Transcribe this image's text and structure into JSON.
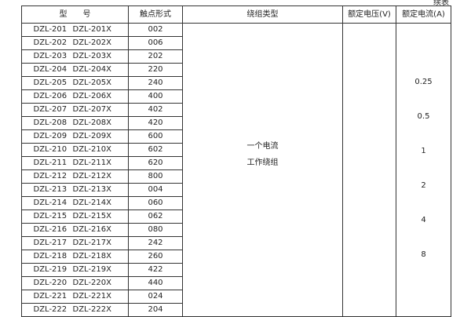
{
  "continued_label": "续表",
  "headers": {
    "model": "型　　号",
    "contact": "触点形式",
    "winding": "绕组类型",
    "voltage": "额定电压(V)",
    "current": "额定电流(A)"
  },
  "rows": [
    {
      "m1": "DZL-201",
      "m2": "DZL-201X",
      "c": "002"
    },
    {
      "m1": "DZL-202",
      "m2": "DZL-202X",
      "c": "006"
    },
    {
      "m1": "DZL-203",
      "m2": "DZL-203X",
      "c": "202"
    },
    {
      "m1": "DZL-204",
      "m2": "DZL-204X",
      "c": "220"
    },
    {
      "m1": "DZL-205",
      "m2": "DZL-205X",
      "c": "240"
    },
    {
      "m1": "DZL-206",
      "m2": "DZL-206X",
      "c": "400"
    },
    {
      "m1": "DZL-207",
      "m2": "DZL-207X",
      "c": "402"
    },
    {
      "m1": "DZL-208",
      "m2": "DZL-208X",
      "c": "420"
    },
    {
      "m1": "DZL-209",
      "m2": "DZL-209X",
      "c": "600"
    },
    {
      "m1": "DZL-210",
      "m2": "DZL-210X",
      "c": "602"
    },
    {
      "m1": "DZL-211",
      "m2": "DZL-211X",
      "c": "620"
    },
    {
      "m1": "DZL-212",
      "m2": "DZL-212X",
      "c": "800"
    },
    {
      "m1": "DZL-213",
      "m2": "DZL-213X",
      "c": "004"
    },
    {
      "m1": "DZL-214",
      "m2": "DZL-214X",
      "c": "060"
    },
    {
      "m1": "DZL-215",
      "m2": "DZL-215X",
      "c": "062"
    },
    {
      "m1": "DZL-216",
      "m2": "DZL-216X",
      "c": "080"
    },
    {
      "m1": "DZL-217",
      "m2": "DZL-217X",
      "c": "242"
    },
    {
      "m1": "DZL-218",
      "m2": "DZL-218X",
      "c": "260"
    },
    {
      "m1": "DZL-219",
      "m2": "DZL-219X",
      "c": "422"
    },
    {
      "m1": "DZL-220",
      "m2": "DZL-220X",
      "c": "440"
    },
    {
      "m1": "DZL-221",
      "m2": "DZL-221X",
      "c": "024"
    },
    {
      "m1": "DZL-222",
      "m2": "DZL-222X",
      "c": "204"
    }
  ],
  "winding": {
    "line1": "一个电流",
    "line2": "工作绕组"
  },
  "currents": [
    "0.25",
    "0.5",
    "1",
    "2",
    "4",
    "8"
  ]
}
